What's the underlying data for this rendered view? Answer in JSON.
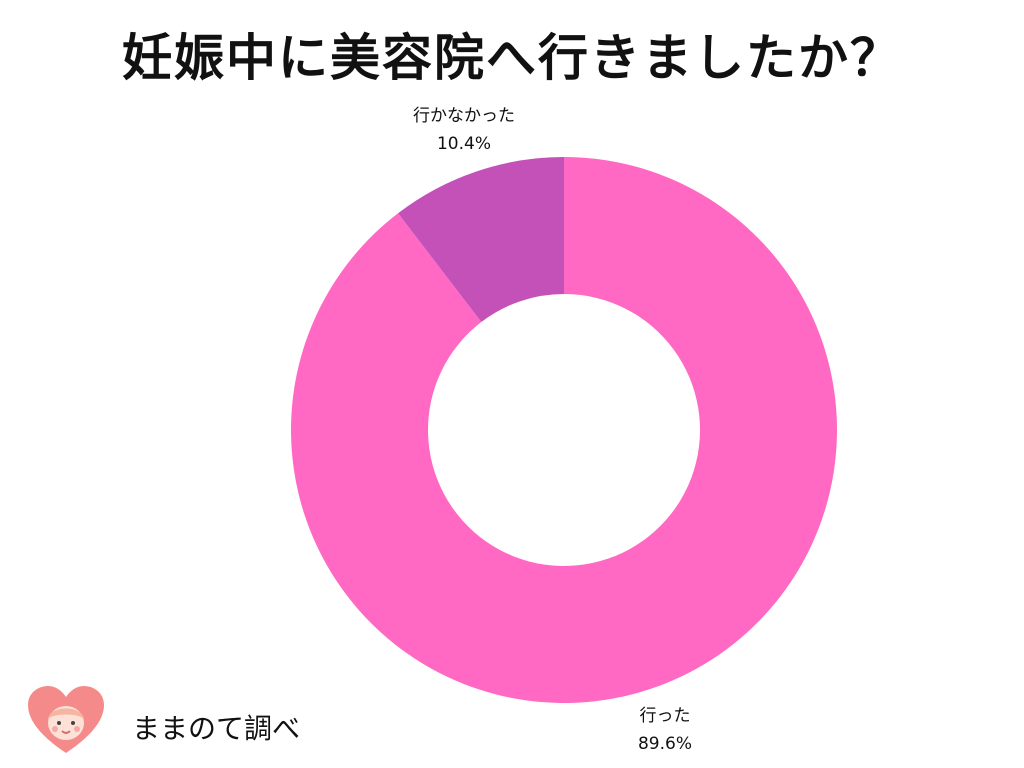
{
  "title": "妊娠中に美容院へ行きましたか？",
  "brand": {
    "name": "ままのて調べ"
  },
  "chart_data": {
    "type": "pie",
    "style": "donut",
    "title": "妊娠中に美容院へ行きましたか？",
    "slices": [
      {
        "label": "行った",
        "value": 89.6,
        "value_text": "89.6%",
        "color": "#ff69c4"
      },
      {
        "label": "行かなかった",
        "value": 10.4,
        "value_text": "10.4%",
        "color": "#c351b8"
      }
    ],
    "legend": "none"
  },
  "colors": {
    "background": "#ffffff",
    "text": "#111111"
  }
}
